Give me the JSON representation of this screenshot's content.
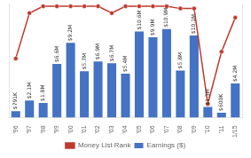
{
  "chart_data": {
    "type": "bar",
    "categories": [
      "'96",
      "'97",
      "'98",
      "'99",
      "'00",
      "'01",
      "'02",
      "'03",
      "'04",
      "'05",
      "'06",
      "'07",
      "'08",
      "'09",
      "'10",
      "'11",
      "1/15"
    ],
    "series": [
      {
        "name": "Earnings ($)",
        "type": "bar",
        "color": "#4472C4",
        "values": [
          0.791,
          2.1,
          1.8,
          6.6,
          9.2,
          5.7,
          6.9,
          6.7,
          5.4,
          10.6,
          9.9,
          10.9,
          5.8,
          10.1,
          1.3,
          0.6,
          4.2
        ],
        "value_labels": [
          "$791K",
          "$2.1M",
          "$1.8M",
          "$6.6M",
          "$9.2M",
          "$5.7M",
          "$6.9M",
          "$6.7M",
          "$5.4M",
          "$10.6M",
          "$9.9M",
          "$10.9M",
          "$5.8M",
          "$10.1M",
          "$1.3M",
          "$600K",
          "$4.2M"
        ]
      },
      {
        "name": "Money List Rank",
        "type": "line",
        "color": "#C0392B",
        "marker": "o",
        "axis": "y2",
        "values": [
          24,
          4,
          1,
          1,
          1,
          1,
          1,
          4,
          1,
          1,
          1,
          1,
          2,
          2,
          44,
          21,
          6
        ]
      }
    ],
    "ylim": [
      0,
      14
    ],
    "y2lim": [
      50,
      0
    ],
    "data_labels": true,
    "tick_labels": "x",
    "grid": false,
    "legend": "bottom"
  }
}
